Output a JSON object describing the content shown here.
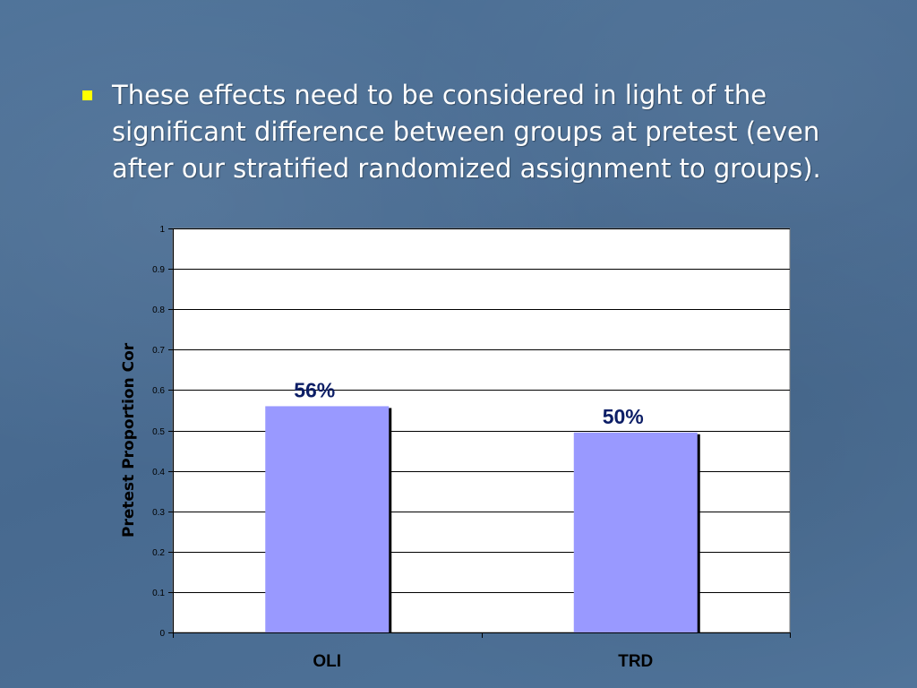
{
  "slide": {
    "bullets": [
      "These effects need to be considered in light of the significant difference between groups at pretest (even after our stratified randomized assignment to groups)."
    ]
  },
  "colors": {
    "bullet": "#ffff00",
    "bar_fill": "#9999ff",
    "data_label": "#0c1e66",
    "plot_bg": "#ffffff"
  },
  "chart_data": {
    "type": "bar",
    "categories": [
      "OLI",
      "TRD"
    ],
    "values": [
      0.56,
      0.495
    ],
    "data_labels": [
      "56%",
      "50%"
    ],
    "ylabel": "Pretest Proportion Cor",
    "xlabel": "",
    "ylim": [
      0,
      1
    ],
    "yticks": [
      0,
      0.1,
      0.2,
      0.3,
      0.4,
      0.5,
      0.6,
      0.7,
      0.8,
      0.9,
      1
    ],
    "ytick_labels": [
      "0",
      "0.1",
      "0.2",
      "0.3",
      "0.4",
      "0.5",
      "0.6",
      "0.7",
      "0.8",
      "0.9",
      "1"
    ],
    "grid": true,
    "legend": "none"
  }
}
